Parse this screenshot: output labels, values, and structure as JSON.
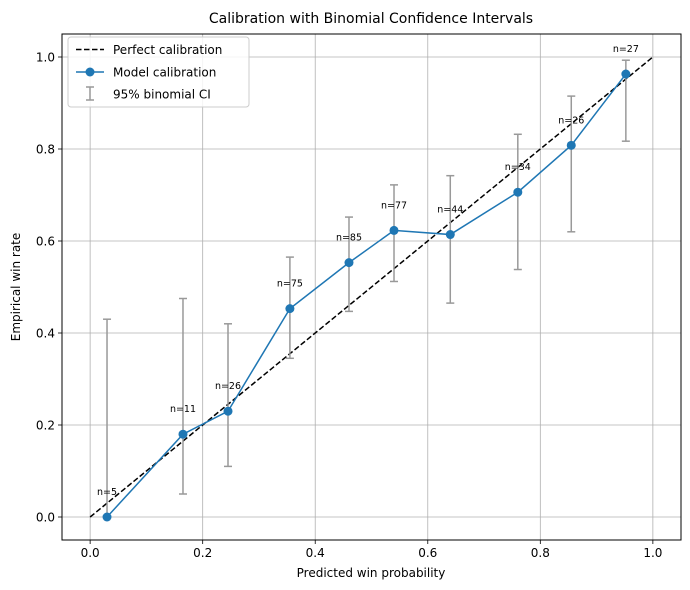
{
  "chart_data": {
    "type": "line",
    "title": "Calibration with Binomial Confidence Intervals",
    "xlabel": "Predicted win probability",
    "ylabel": "Empirical win rate",
    "xlim": [
      -0.05,
      1.05
    ],
    "ylim": [
      -0.05,
      1.05
    ],
    "xticks": [
      "0.0",
      "0.2",
      "0.4",
      "0.6",
      "0.8",
      "1.0"
    ],
    "yticks": [
      "0.0",
      "0.2",
      "0.4",
      "0.6",
      "0.8",
      "1.0"
    ],
    "grid": true,
    "legend_position": "top-left",
    "legend": [
      {
        "label": "Perfect calibration",
        "style": "dashed",
        "color": "#000000"
      },
      {
        "label": "Model calibration",
        "style": "line-marker",
        "color": "#1f77b4"
      },
      {
        "label": "95% binomial CI",
        "style": "errorbar",
        "color": "#999999"
      }
    ],
    "perfect_line": {
      "x": [
        0,
        1
      ],
      "y": [
        0,
        1
      ],
      "color": "#000000"
    },
    "series": [
      {
        "name": "Model calibration",
        "color": "#1f77b4",
        "points": [
          {
            "x": 0.03,
            "y": 0.0,
            "ci_low": 0.0,
            "ci_high": 0.43,
            "n": "n=5"
          },
          {
            "x": 0.165,
            "y": 0.18,
            "ci_low": 0.05,
            "ci_high": 0.475,
            "n": "n=11"
          },
          {
            "x": 0.245,
            "y": 0.23,
            "ci_low": 0.11,
            "ci_high": 0.42,
            "n": "n=26"
          },
          {
            "x": 0.355,
            "y": 0.453,
            "ci_low": 0.345,
            "ci_high": 0.565,
            "n": "n=75"
          },
          {
            "x": 0.46,
            "y": 0.553,
            "ci_low": 0.447,
            "ci_high": 0.652,
            "n": "n=85"
          },
          {
            "x": 0.54,
            "y": 0.623,
            "ci_low": 0.512,
            "ci_high": 0.722,
            "n": "n=77"
          },
          {
            "x": 0.64,
            "y": 0.614,
            "ci_low": 0.465,
            "ci_high": 0.742,
            "n": "n=44"
          },
          {
            "x": 0.76,
            "y": 0.706,
            "ci_low": 0.538,
            "ci_high": 0.832,
            "n": "n=34"
          },
          {
            "x": 0.855,
            "y": 0.808,
            "ci_low": 0.62,
            "ci_high": 0.915,
            "n": "n=26"
          },
          {
            "x": 0.952,
            "y": 0.963,
            "ci_low": 0.817,
            "ci_high": 0.993,
            "n": "n=27"
          }
        ]
      }
    ],
    "colors": {
      "grid": "#b0b0b0",
      "errorbar": "#999999",
      "axes": "#000000"
    }
  }
}
